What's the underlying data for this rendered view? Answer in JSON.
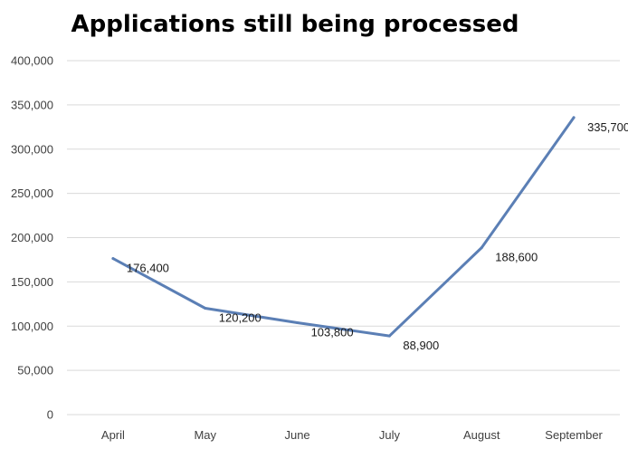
{
  "chart_data": {
    "type": "line",
    "title": "Applications still being processed",
    "categories": [
      "April",
      "May",
      "June",
      "July",
      "August",
      "September"
    ],
    "values": [
      176400,
      120200,
      103800,
      88900,
      188600,
      335700
    ],
    "value_labels": [
      "176,400",
      "120,200",
      "103,800",
      "88,900",
      "188,600",
      "335,700"
    ],
    "ylim": [
      0,
      400000
    ],
    "y_ticks": [
      "0",
      "50,000",
      "100,000",
      "150,000",
      "200,000",
      "250,000",
      "300,000",
      "350,000",
      "400,000"
    ],
    "grid": true,
    "line_color": "#5b7fb5",
    "grid_color": "#d9d9d9"
  }
}
